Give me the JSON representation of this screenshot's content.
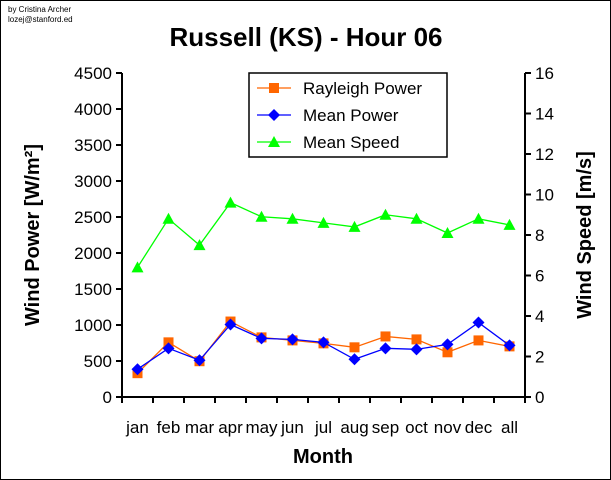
{
  "credit": {
    "line1": "by Cristina Archer",
    "line2": "lozej@stanford.ed"
  },
  "chart_data": {
    "type": "line",
    "title": "Russell (KS) - Hour 06",
    "xlabel": "Month",
    "ylabel": "Wind Power [W/m²]",
    "y2label": "Wind Speed [m/s]",
    "categories": [
      "jan",
      "feb",
      "mar",
      "apr",
      "may",
      "jun",
      "jul",
      "aug",
      "sep",
      "oct",
      "nov",
      "dec",
      "all"
    ],
    "ylim": [
      0,
      4500
    ],
    "yticks": [
      0,
      500,
      1000,
      1500,
      2000,
      2500,
      3000,
      3500,
      4000,
      4500
    ],
    "y2lim": [
      0,
      16
    ],
    "y2ticks": [
      0,
      2,
      4,
      6,
      8,
      10,
      12,
      14,
      16
    ],
    "legend_position": "top-center",
    "series": [
      {
        "name": "Rayleigh Power",
        "axis": "left",
        "color": "#ff6600",
        "marker": "square",
        "values": [
          331,
          759,
          497,
          1048,
          828,
          786,
          745,
          690,
          841,
          800,
          621,
          786,
          703
        ]
      },
      {
        "name": "Mean Power",
        "axis": "left",
        "color": "#0000ff",
        "marker": "diamond",
        "values": [
          386,
          676,
          510,
          1007,
          814,
          800,
          759,
          524,
          676,
          662,
          731,
          1034,
          717
        ]
      },
      {
        "name": "Mean Speed",
        "axis": "right",
        "color": "#00ff00",
        "marker": "triangle",
        "values": [
          6.4,
          8.8,
          7.5,
          9.6,
          8.9,
          8.8,
          8.6,
          8.4,
          9.0,
          8.8,
          8.1,
          8.8,
          8.5
        ]
      }
    ]
  }
}
